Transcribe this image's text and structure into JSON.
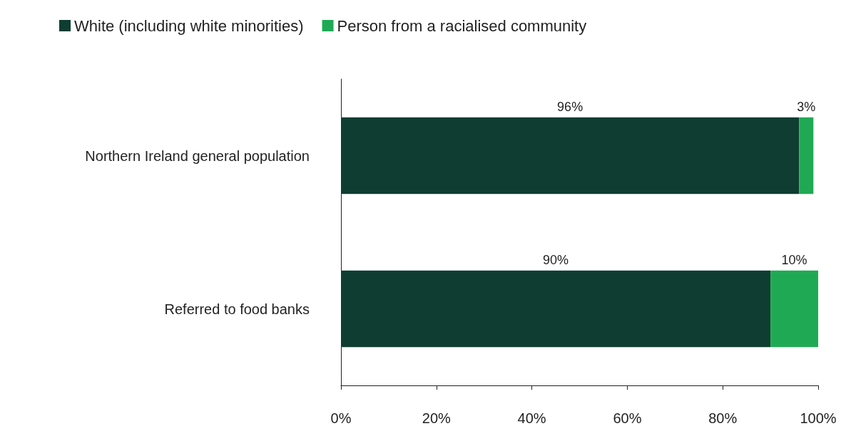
{
  "chart_data": {
    "type": "bar",
    "orientation": "horizontal",
    "stacked": true,
    "categories": [
      "Northern Ireland general population",
      "Referred to food banks"
    ],
    "series": [
      {
        "name": "White (including white minorities)",
        "color": "#0f3d31",
        "values": [
          96,
          90
        ],
        "value_labels": [
          "96%",
          "90%"
        ]
      },
      {
        "name": "Person from a racialised community",
        "color": "#20a955",
        "values": [
          3,
          10
        ],
        "value_labels": [
          "3%",
          "10%"
        ]
      }
    ],
    "xlim": [
      0,
      100
    ],
    "xticks": [
      {
        "value": 0,
        "label": "0%"
      },
      {
        "value": 20,
        "label": "20%"
      },
      {
        "value": 40,
        "label": "40%"
      },
      {
        "value": 60,
        "label": "60%"
      },
      {
        "value": 80,
        "label": "80%"
      },
      {
        "value": 100,
        "label": "100%"
      }
    ],
    "grid": false,
    "legend": "top left"
  }
}
